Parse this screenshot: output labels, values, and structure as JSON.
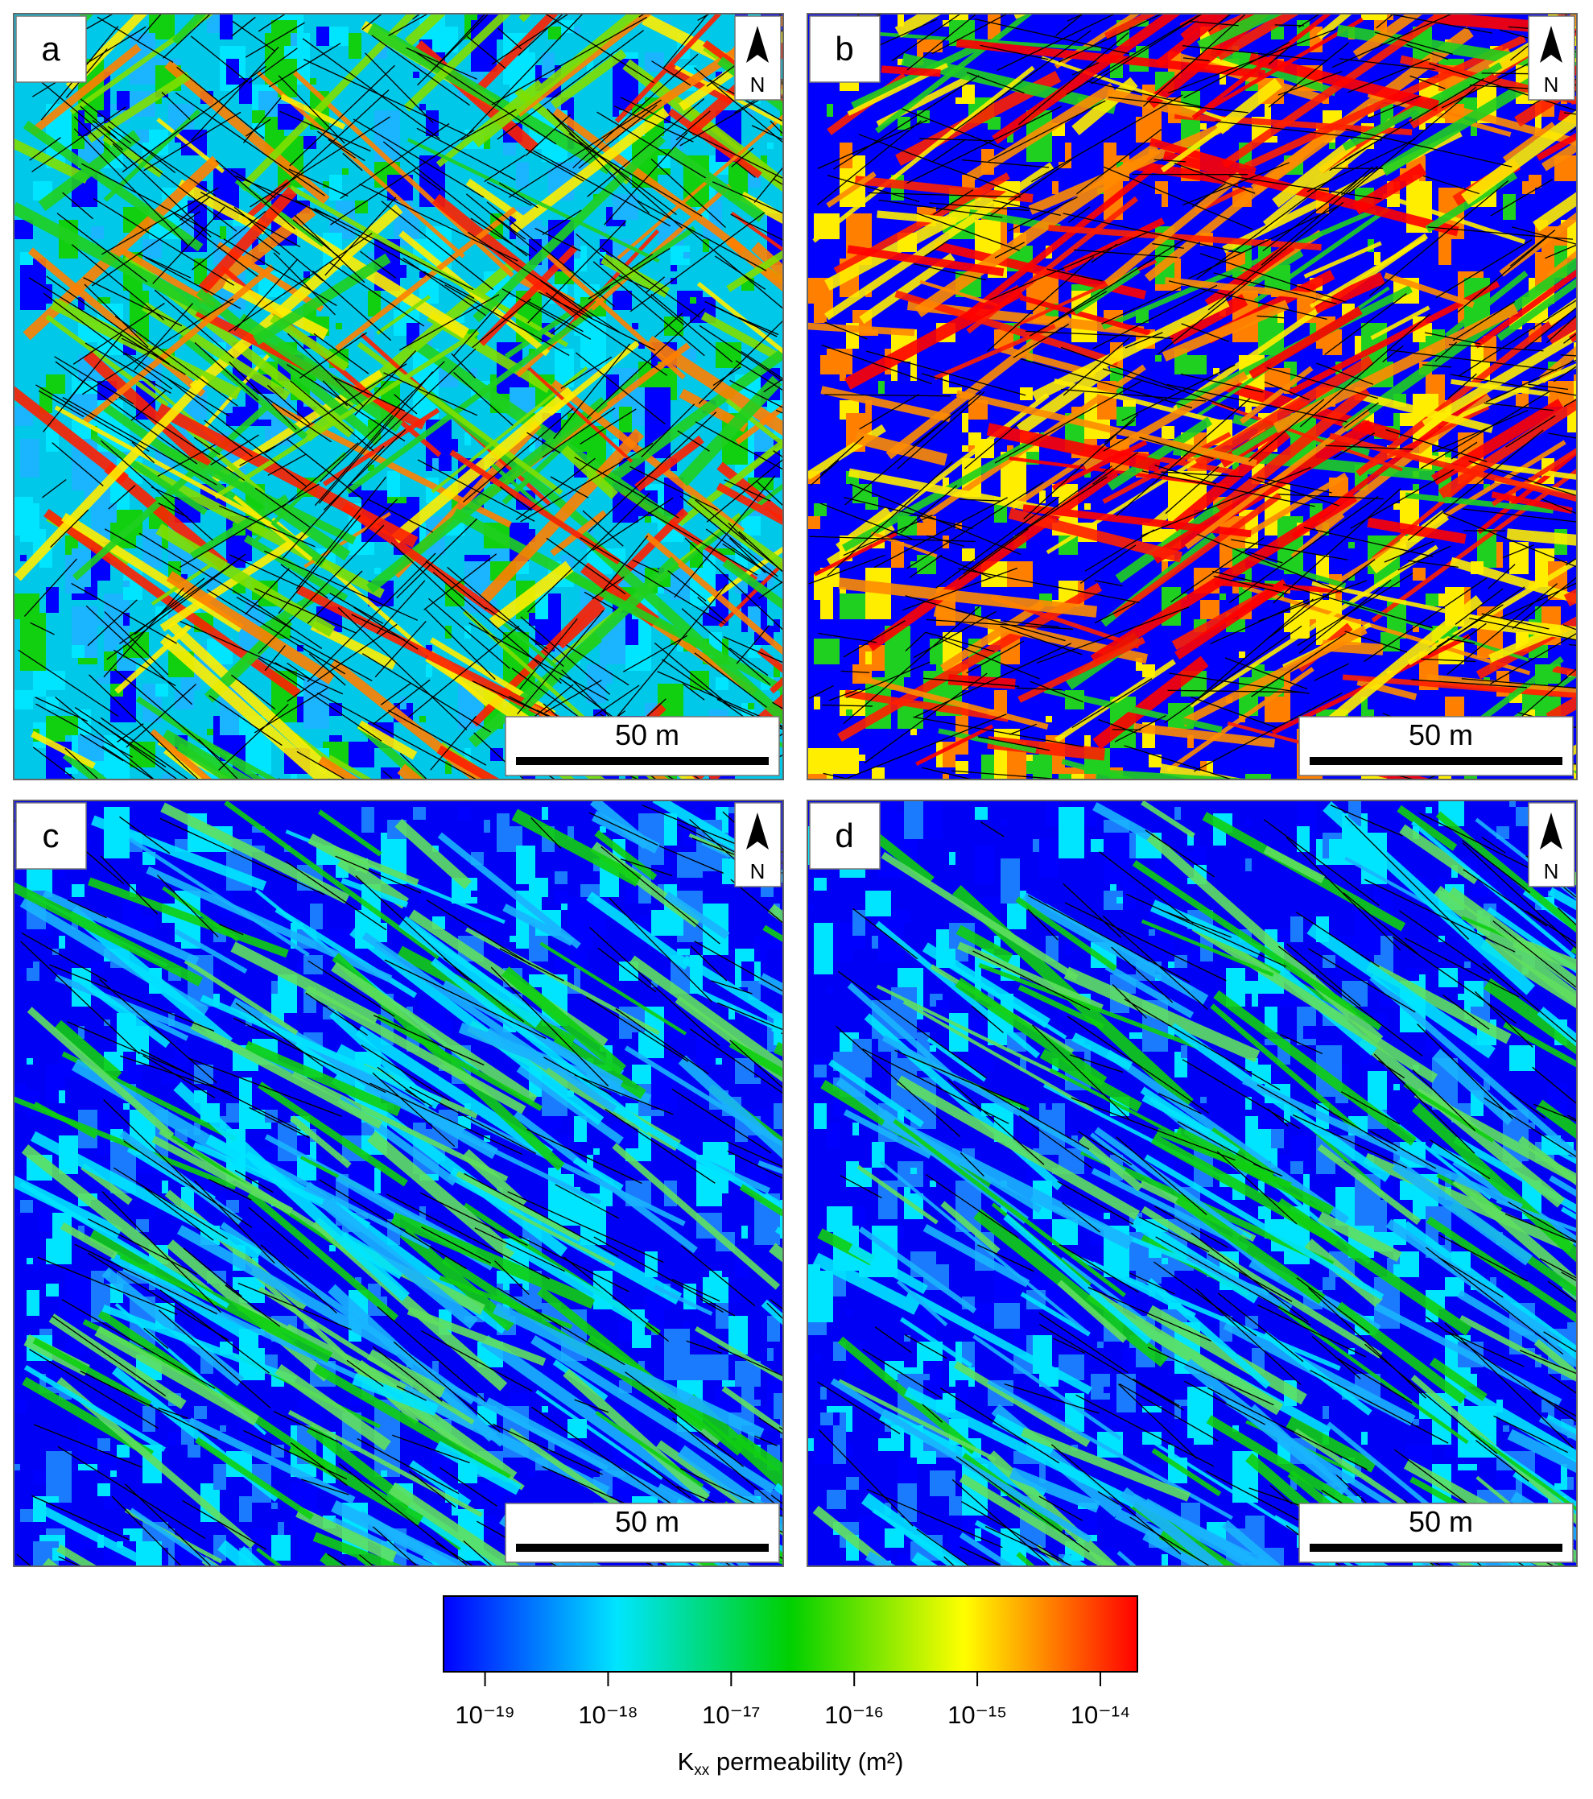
{
  "panels": [
    {
      "label": "a",
      "north": "N",
      "scale": "50 m"
    },
    {
      "label": "b",
      "north": "N",
      "scale": "50 m"
    },
    {
      "label": "c",
      "north": "N",
      "scale": "50 m"
    },
    {
      "label": "d",
      "north": "N",
      "scale": "50 m"
    }
  ],
  "colorbar": {
    "log": true,
    "colors": [
      "#0000ff",
      "#00e5ff",
      "#00d000",
      "#ffff00",
      "#ff0000"
    ],
    "lim": [
      4.6e-20,
      2e-14
    ],
    "ticks": [
      {
        "value": 1e-19,
        "label": "10⁻¹⁹"
      },
      {
        "value": 1e-18,
        "label": "10⁻¹⁸"
      },
      {
        "value": 1e-17,
        "label": "10⁻¹⁷"
      },
      {
        "value": 1e-16,
        "label": "10⁻¹⁶"
      },
      {
        "value": 1e-15,
        "label": "10⁻¹⁵"
      },
      {
        "value": 1e-14,
        "label": "10⁻¹⁴"
      }
    ],
    "label": {
      "symbol": "K",
      "subscript": "xx",
      "text": " permeability (m²)"
    }
  }
}
